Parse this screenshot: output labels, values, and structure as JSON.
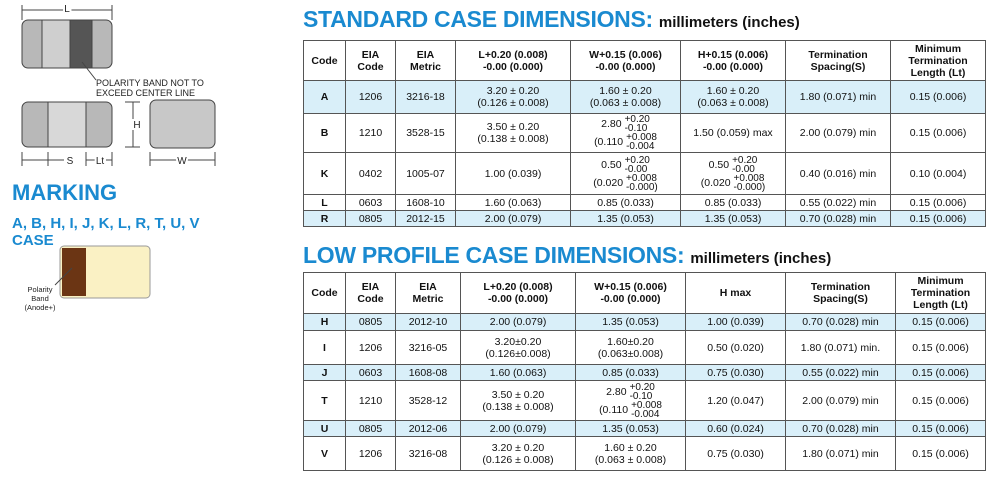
{
  "diagram": {
    "length_label": "L",
    "polarity_note": [
      "POLARITY BAND NOT TO",
      "EXCEED CENTER LINE"
    ],
    "height_label": "H",
    "spacing_label": "S",
    "termination_label": "Lt",
    "width_label": "W"
  },
  "marking": {
    "title": "MARKING",
    "cases": [
      "A, B, H, I, J, K, L, R, T, U, V",
      "CASE"
    ],
    "band_label": [
      "Polarity",
      "Band",
      "(Anode+)"
    ]
  },
  "standard_table": {
    "title": "STANDARD CASE DIMENSIONS:",
    "units": "millimeters (inches)",
    "headers": [
      [
        "Code"
      ],
      [
        "EIA",
        "Code"
      ],
      [
        "EIA",
        "Metric"
      ],
      [
        "L+0.20 (0.008)",
        "-0.00 (0.000)"
      ],
      [
        "W+0.15 (0.006)",
        "-0.00 (0.000)"
      ],
      [
        "H+0.15 (0.006)",
        "-0.00 (0.000)"
      ],
      [
        "Termination",
        "Spacing(S)"
      ],
      [
        "Minimum",
        "Termination",
        "Length (Lt)"
      ]
    ],
    "rows": [
      [
        "A",
        "1206",
        "3216-18",
        [
          "3.20 ± 0.20",
          "(0.126 ± 0.008)"
        ],
        [
          "1.60 ± 0.20",
          "(0.063 ± 0.008)"
        ],
        [
          "1.60 ± 0.20",
          "(0.063 ± 0.008)"
        ],
        "1.80 (0.071) min",
        "0.15 (0.006)"
      ],
      [
        "B",
        "1210",
        "3528-15",
        [
          "3.50 ± 0.20",
          "(0.138 ± 0.008)"
        ],
        [
          {
            "base": "2.80",
            "plus": "+0.20",
            "minus": "-0.10"
          },
          {
            "base": "(0.110",
            "plus": "+0.008",
            "minus": "-0.004"
          }
        ],
        "1.50 (0.059) max",
        "2.00 (0.079) min",
        "0.15 (0.006)"
      ],
      [
        "K",
        "0402",
        "1005-07",
        "1.00 (0.039)",
        [
          {
            "base": "0.50",
            "plus": "+0.20",
            "minus": "-0.00"
          },
          {
            "base": "(0.020",
            "plus": "+0.008",
            "minus": "-0.000)"
          }
        ],
        [
          {
            "base": "0.50",
            "plus": "+0.20",
            "minus": "-0.00"
          },
          {
            "base": "(0.020",
            "plus": "+0.008",
            "minus": "-0.000)"
          }
        ],
        "0.40 (0.016) min",
        "0.10 (0.004)"
      ],
      [
        "L",
        "0603",
        "1608-10",
        "1.60 (0.063)",
        "0.85 (0.033)",
        "0.85 (0.033)",
        "0.55 (0.022) min",
        "0.15 (0.006)"
      ],
      [
        "R",
        "0805",
        "2012-15",
        "2.00 (0.079)",
        "1.35 (0.053)",
        "1.35 (0.053)",
        "0.70 (0.028) min",
        "0.15 (0.006)"
      ]
    ]
  },
  "low_profile_table": {
    "title": "LOW PROFILE CASE DIMENSIONS:",
    "units": "millimeters (inches)",
    "headers": [
      [
        "Code"
      ],
      [
        "EIA",
        "Code"
      ],
      [
        "EIA",
        "Metric"
      ],
      [
        "L+0.20 (0.008)",
        "-0.00 (0.000)"
      ],
      [
        "W+0.15 (0.006)",
        "-0.00 (0.000)"
      ],
      [
        "H max"
      ],
      [
        "Termination",
        "Spacing(S)"
      ],
      [
        "Minimum",
        "Termination",
        "Length (Lt)"
      ]
    ],
    "rows": [
      [
        "H",
        "0805",
        "2012-10",
        "2.00 (0.079)",
        "1.35 (0.053)",
        "1.00 (0.039)",
        "0.70 (0.028) min",
        "0.15 (0.006)"
      ],
      [
        "I",
        "1206",
        "3216-05",
        [
          "3.20±0.20",
          "(0.126±0.008)"
        ],
        [
          "1.60±0.20",
          "(0.063±0.008)"
        ],
        "0.50 (0.020)",
        "1.80 (0.071) min.",
        "0.15 (0.006)"
      ],
      [
        "J",
        "0603",
        "1608-08",
        "1.60 (0.063)",
        "0.85 (0.033)",
        "0.75 (0.030)",
        "0.55 (0.022) min",
        "0.15 (0.006)"
      ],
      [
        "T",
        "1210",
        "3528-12",
        [
          "3.50 ± 0.20",
          "(0.138 ± 0.008)"
        ],
        [
          {
            "base": "2.80",
            "plus": "+0.20",
            "minus": "-0.10"
          },
          {
            "base": "(0.110",
            "plus": "+0.008",
            "minus": "-0.004"
          }
        ],
        "1.20 (0.047)",
        "2.00 (0.079) min",
        "0.15 (0.006)"
      ],
      [
        "U",
        "0805",
        "2012-06",
        "2.00 (0.079)",
        "1.35 (0.053)",
        "0.60 (0.024)",
        "0.70 (0.028) min",
        "0.15 (0.006)"
      ],
      [
        "V",
        "1206",
        "3216-08",
        [
          "3.20 ± 0.20",
          "(0.126 ± 0.008)"
        ],
        [
          "1.60 ± 0.20",
          "(0.063 ± 0.008)"
        ],
        "0.75 (0.030)",
        "1.80 (0.071) min",
        "0.15 (0.006)"
      ]
    ]
  }
}
